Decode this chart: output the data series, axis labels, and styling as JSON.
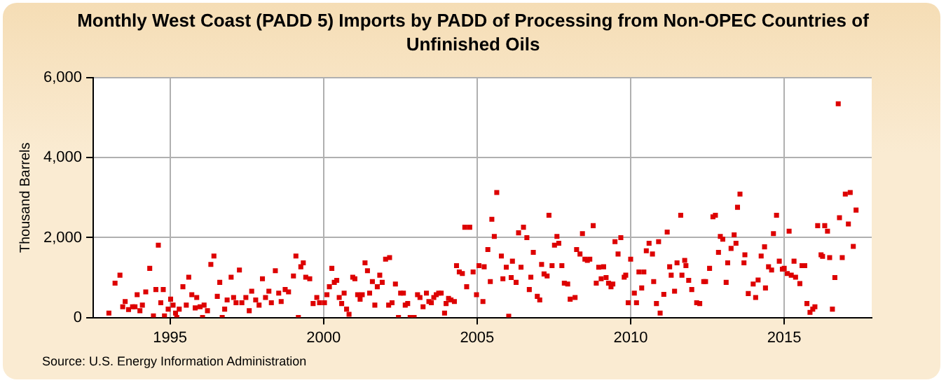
{
  "chart_data": {
    "type": "scatter",
    "title": "Monthly West Coast (PADD 5) Imports by PADD of Processing from Non-OPEC Countries of Unfinished Oils",
    "ylabel": "Thousand Barrels",
    "annotations": [
      "Source: U.S. Energy Information Administration"
    ],
    "x": [
      1993.01,
      1993.21,
      1993.37,
      1993.46,
      1993.54,
      1993.65,
      1993.78,
      1993.86,
      1993.93,
      1994.02,
      1994.1,
      1994.21,
      1994.34,
      1994.46,
      1994.54,
      1994.62,
      1994.7,
      1994.78,
      1994.82,
      1994.94,
      1995.02,
      1995.1,
      1995.18,
      1995.22,
      1995.3,
      1995.42,
      1995.53,
      1995.61,
      1995.71,
      1995.82,
      1995.87,
      1995.98,
      1996.06,
      1996.11,
      1996.22,
      1996.33,
      1996.43,
      1996.54,
      1996.62,
      1996.7,
      1996.78,
      1996.86,
      1996.99,
      1997.07,
      1997.15,
      1997.26,
      1997.34,
      1997.47,
      1997.58,
      1997.66,
      1997.79,
      1997.9,
      1998.01,
      1998.11,
      1998.22,
      1998.3,
      1998.43,
      1998.54,
      1998.62,
      1998.75,
      1998.86,
      1999.02,
      1999.1,
      1999.18,
      1999.26,
      1999.34,
      1999.42,
      1999.55,
      1999.66,
      1999.78,
      1999.87,
      2000.03,
      2000.11,
      2000.19,
      2000.27,
      2000.35,
      2000.43,
      2000.51,
      2000.59,
      2000.67,
      2000.75,
      2000.83,
      2000.95,
      2001.02,
      2001.11,
      2001.19,
      2001.26,
      2001.35,
      2001.43,
      2001.5,
      2001.59,
      2001.67,
      2001.75,
      2001.83,
      2001.91,
      2002.02,
      2002.12,
      2002.15,
      2002.23,
      2002.34,
      2002.44,
      2002.51,
      2002.6,
      2002.66,
      2002.74,
      2002.82,
      2002.95,
      2003.06,
      2003.14,
      2003.24,
      2003.35,
      2003.43,
      2003.51,
      2003.59,
      2003.67,
      2003.75,
      2003.83,
      2003.94,
      2003.99,
      2004.07,
      2004.15,
      2004.26,
      2004.33,
      2004.42,
      2004.52,
      2004.6,
      2004.66,
      2004.76,
      2004.87,
      2004.98,
      2005.06,
      2005.19,
      2005.23,
      2005.35,
      2005.43,
      2005.48,
      2005.56,
      2005.64,
      2005.79,
      2005.84,
      2005.95,
      2006.03,
      2006.11,
      2006.15,
      2006.27,
      2006.35,
      2006.43,
      2006.51,
      2006.62,
      2006.7,
      2006.75,
      2006.83,
      2006.96,
      2007.04,
      2007.1,
      2007.18,
      2007.28,
      2007.34,
      2007.44,
      2007.52,
      2007.6,
      2007.66,
      2007.76,
      2007.84,
      2007.95,
      2008.03,
      2008.19,
      2008.24,
      2008.35,
      2008.43,
      2008.51,
      2008.59,
      2008.67,
      2008.78,
      2008.88,
      2008.96,
      2009.04,
      2009.12,
      2009.2,
      2009.28,
      2009.36,
      2009.42,
      2009.49,
      2009.59,
      2009.68,
      2009.79,
      2009.84,
      2009.92,
      2010.0,
      2010.12,
      2010.19,
      2010.27,
      2010.36,
      2010.43,
      2010.51,
      2010.6,
      2010.71,
      2010.75,
      2010.84,
      2010.91,
      2010.96,
      2011.08,
      2011.19,
      2011.27,
      2011.32,
      2011.43,
      2011.51,
      2011.63,
      2011.67,
      2011.76,
      2011.8,
      2011.89,
      2011.99,
      2012.15,
      2012.25,
      2012.38,
      2012.44,
      2012.57,
      2012.68,
      2012.76,
      2012.86,
      2012.92,
      2013.0,
      2013.11,
      2013.16,
      2013.27,
      2013.37,
      2013.43,
      2013.48,
      2013.56,
      2013.69,
      2013.72,
      2013.83,
      2013.99,
      2014.07,
      2014.15,
      2014.25,
      2014.36,
      2014.39,
      2014.49,
      2014.59,
      2014.65,
      2014.75,
      2014.84,
      2014.94,
      2015.0,
      2015.1,
      2015.16,
      2015.23,
      2015.32,
      2015.37,
      2015.51,
      2015.58,
      2015.67,
      2015.74,
      2015.84,
      2015.93,
      2016.0,
      2016.09,
      2016.2,
      2016.25,
      2016.32,
      2016.41,
      2016.48,
      2016.57,
      2016.65,
      2016.76,
      2016.8,
      2016.89,
      2016.99,
      2017.09,
      2017.15,
      2017.25,
      2017.34
    ],
    "series": [
      {
        "color": "#dd0000",
        "values": [
          110,
          860,
          1060,
          270,
          400,
          200,
          270,
          270,
          570,
          170,
          310,
          640,
          1230,
          40,
          700,
          1810,
          370,
          700,
          40,
          210,
          460,
          310,
          110,
          0,
          210,
          770,
          310,
          1010,
          570,
          240,
          500,
          270,
          0,
          310,
          170,
          1330,
          1540,
          530,
          880,
          0,
          210,
          440,
          1010,
          500,
          370,
          1190,
          370,
          500,
          170,
          660,
          440,
          310,
          970,
          500,
          660,
          370,
          1170,
          610,
          400,
          700,
          640,
          1040,
          1540,
          0,
          1270,
          1370,
          1010,
          970,
          350,
          500,
          370,
          370,
          570,
          770,
          1230,
          880,
          930,
          500,
          350,
          610,
          210,
          80,
          1010,
          970,
          570,
          460,
          570,
          1370,
          1170,
          610,
          900,
          310,
          770,
          1060,
          880,
          1460,
          310,
          1500,
          370,
          840,
          0,
          610,
          610,
          310,
          350,
          0,
          0,
          570,
          500,
          270,
          610,
          400,
          370,
          500,
          570,
          610,
          610,
          110,
          350,
          480,
          440,
          400,
          1300,
          1140,
          1100,
          2260,
          770,
          2260,
          1140,
          570,
          1300,
          400,
          1270,
          1700,
          900,
          2460,
          2030,
          3130,
          1540,
          970,
          1260,
          30,
          1000,
          1410,
          880,
          2120,
          1260,
          2260,
          2000,
          700,
          1010,
          1630,
          530,
          440,
          1330,
          1090,
          1040,
          2560,
          1300,
          1810,
          2030,
          1860,
          1300,
          860,
          840,
          460,
          500,
          1700,
          1590,
          2100,
          1460,
          1430,
          1460,
          2300,
          860,
          1260,
          970,
          1270,
          1000,
          860,
          770,
          840,
          1900,
          1590,
          2000,
          1010,
          1060,
          370,
          1460,
          610,
          370,
          1140,
          740,
          1140,
          1670,
          1860,
          1590,
          900,
          350,
          1900,
          110,
          580,
          2140,
          1270,
          1060,
          660,
          1370,
          2560,
          1060,
          1430,
          1300,
          930,
          700,
          370,
          350,
          900,
          900,
          1230,
          2520,
          2560,
          1630,
          2030,
          1960,
          880,
          1370,
          1730,
          2070,
          1860,
          2760,
          3090,
          1370,
          1570,
          600,
          840,
          500,
          940,
          1540,
          1770,
          740,
          1270,
          1190,
          2100,
          2560,
          1410,
          1210,
          1230,
          1100,
          2160,
          1060,
          1410,
          1010,
          850,
          1300,
          1300,
          350,
          130,
          210,
          270,
          2300,
          1570,
          1530,
          2300,
          2160,
          1500,
          210,
          1000,
          5350,
          2500,
          1500,
          3090,
          2340,
          3130,
          1780,
          2690
        ]
      }
    ],
    "xlim": [
      1992.5,
      2017.85
    ],
    "xticks": [
      1995,
      2000,
      2005,
      2010,
      2015
    ],
    "ylim": [
      0,
      6000
    ],
    "yticks": [
      0,
      {
        "value": 2000,
        "label": "2,000"
      },
      {
        "value": 4000,
        "label": "4,000"
      },
      {
        "value": 6000,
        "label": "6,000"
      }
    ],
    "grid": true,
    "legend": false,
    "marker": "square"
  }
}
